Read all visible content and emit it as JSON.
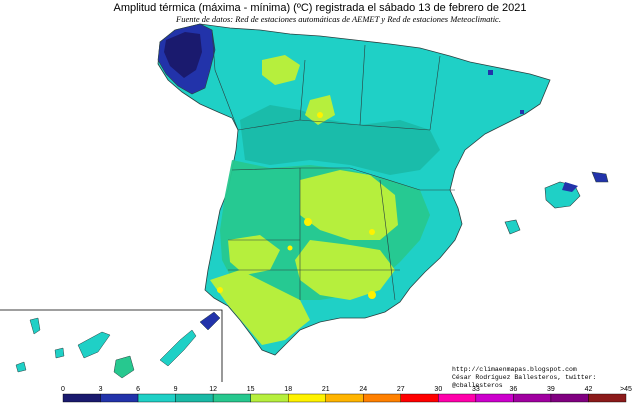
{
  "header": {
    "title": "Amplitud térmica (máxima - mínima) (ºC) registrada el sábado 13 de febrero de 2021",
    "subtitle": "Fuente de datos: Red de estaciones automáticas de AEMET y Red de estaciones Meteoclimatic."
  },
  "credits": {
    "url": "http://climaenmapas.blogspot.com",
    "author": "César Rodríguez Ballesteros, twitter: @cballesteros"
  },
  "legend": {
    "labels": [
      "0",
      "3",
      "6",
      "9",
      "12",
      "15",
      "18",
      "21",
      "24",
      "27",
      "30",
      "33",
      "36",
      "39",
      "42",
      ">45"
    ],
    "colors": [
      "#1a1a6e",
      "#2233aa",
      "#1fd0c6",
      "#19b9a6",
      "#27c88f",
      "#b6ef3d",
      "#fff200",
      "#ffb400",
      "#ff8000",
      "#ff0000",
      "#ff00aa",
      "#cc00cc",
      "#a000a0",
      "#800080",
      "#8b1a1a"
    ],
    "unit": "ºC"
  },
  "map_colors": {
    "sea": "#ffffff",
    "base": "#1fd0c6",
    "mid": "#19b9a6",
    "warm": "#27c88f",
    "hot": "#b6ef3d",
    "hotter": "#fff200",
    "cold": "#2233aa",
    "coldest": "#1a1a6e",
    "border": "#2a4040"
  }
}
